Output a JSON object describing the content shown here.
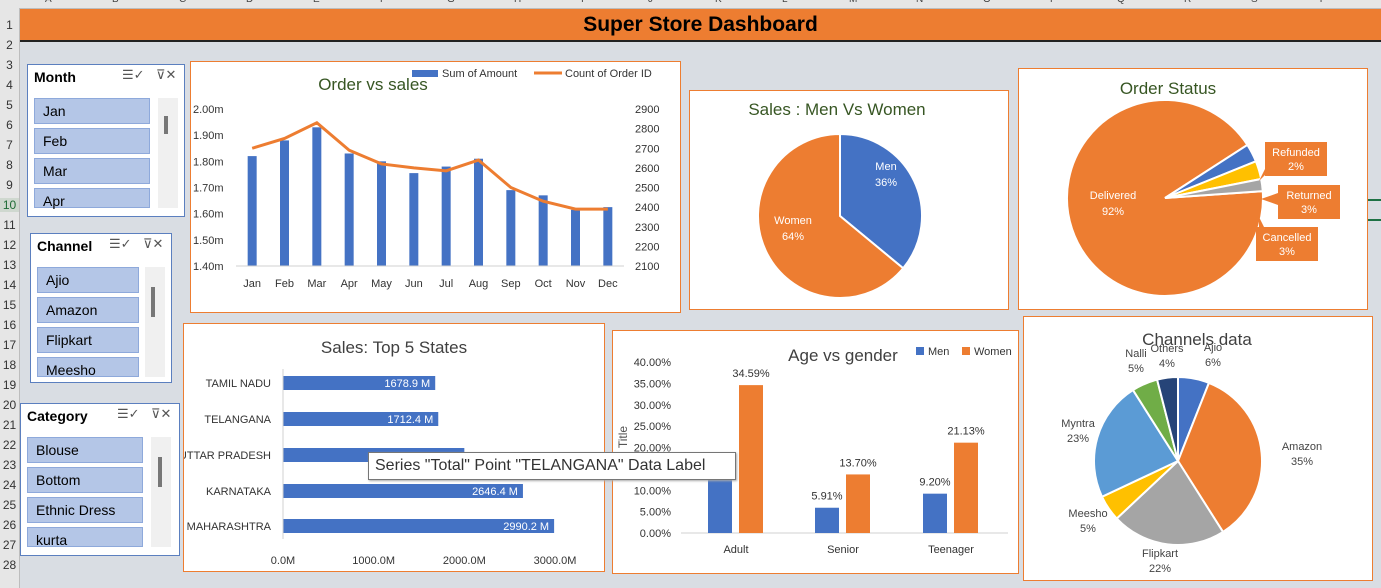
{
  "dashboard": {
    "title": "Super Store Dashboard"
  },
  "sheet": {
    "columns": [
      "A",
      "B",
      "C",
      "D",
      "E",
      "F",
      "G",
      "H",
      "I",
      "J",
      "K",
      "L",
      "M",
      "N",
      "O",
      "P",
      "Q",
      "R",
      "S",
      "T"
    ],
    "rows": [
      "1",
      "2",
      "3",
      "4",
      "5",
      "6",
      "7",
      "8",
      "9",
      "10",
      "11",
      "12",
      "13",
      "14",
      "15",
      "16",
      "17",
      "18",
      "19",
      "20",
      "21",
      "22",
      "23",
      "24",
      "25",
      "26",
      "27",
      "28"
    ],
    "selected_row": "10"
  },
  "slicers": {
    "month": {
      "title": "Month",
      "items": [
        "Jan",
        "Feb",
        "Mar",
        "Apr"
      ],
      "icons": [
        "multi-select-icon",
        "clear-filter-icon"
      ]
    },
    "channel": {
      "title": "Channel",
      "items": [
        "Ajio",
        "Amazon",
        "Flipkart",
        "Meesho"
      ],
      "icons": [
        "multi-select-icon",
        "clear-filter-icon"
      ]
    },
    "category": {
      "title": "Category",
      "items": [
        "Blouse",
        "Bottom",
        "Ethnic Dress",
        "kurta"
      ],
      "icons": [
        "multi-select-icon",
        "clear-filter-icon"
      ]
    }
  },
  "tooltip": {
    "text": "Series \"Total\" Point \"TELANGANA\" Data Label"
  },
  "colors": {
    "blue": "#4472c4",
    "orange": "#ed7d31",
    "gray": "#a5a5a5",
    "yellow": "#ffc000",
    "lightblue": "#5b9bd5",
    "green": "#70ad47",
    "navy": "#264478",
    "title_green": "#375623"
  },
  "chart_data": [
    {
      "id": "order-vs-sales",
      "type": "bar",
      "title": "Order vs  sales",
      "categories": [
        "Jan",
        "Feb",
        "Mar",
        "Apr",
        "May",
        "Jun",
        "Jul",
        "Aug",
        "Sep",
        "Oct",
        "Nov",
        "Dec"
      ],
      "series": [
        {
          "name": "Sum of Amount",
          "type": "bar",
          "axis": "left",
          "values": [
            1.82,
            1.88,
            1.93,
            1.83,
            1.8,
            1.755,
            1.78,
            1.81,
            1.69,
            1.67,
            1.615,
            1.625
          ]
        },
        {
          "name": "Count of Order ID",
          "type": "line",
          "axis": "right",
          "values": [
            2700,
            2750,
            2830,
            2690,
            2620,
            2600,
            2585,
            2640,
            2500,
            2430,
            2390,
            2390
          ]
        }
      ],
      "ylim": [
        1.4,
        2.0
      ],
      "yticks": [
        "1.40m",
        "1.50m",
        "1.60m",
        "1.70m",
        "1.80m",
        "1.90m",
        "2.00m"
      ],
      "y2lim": [
        2100,
        2900
      ],
      "y2ticks": [
        "2100",
        "2200",
        "2300",
        "2400",
        "2500",
        "2600",
        "2700",
        "2800",
        "2900"
      ],
      "legend": "top"
    },
    {
      "id": "sales-men-women",
      "type": "pie",
      "title": "Sales : Men Vs Women",
      "slices": [
        {
          "label": "Men",
          "value": 36,
          "display": "36%",
          "color": "#4472c4"
        },
        {
          "label": "Women",
          "value": 64,
          "display": "64%",
          "color": "#ed7d31"
        }
      ]
    },
    {
      "id": "order-status",
      "type": "pie",
      "title": "Order Status",
      "slices": [
        {
          "label": "Delivered",
          "value": 92,
          "display": "92%",
          "color": "#ed7d31"
        },
        {
          "label": "Refunded",
          "value": 2,
          "display": "2%",
          "color": "#a5a5a5"
        },
        {
          "label": "Returned",
          "value": 3,
          "display": "3%",
          "color": "#ffc000"
        },
        {
          "label": "Cancelled",
          "value": 3,
          "display": "3%",
          "color": "#4472c4"
        }
      ]
    },
    {
      "id": "top-5-states",
      "type": "bar",
      "orientation": "horizontal",
      "title": "Sales: Top 5 States",
      "categories": [
        "TAMIL NADU",
        "TELANGANA",
        "UTTAR PRADESH",
        "KARNATAKA",
        "MAHARASHTRA"
      ],
      "values": [
        1678.9,
        1712.4,
        2000,
        2646.4,
        2990.2
      ],
      "data_labels": [
        "1678.9 M",
        "1712.4 M",
        "",
        "2646.4 M",
        "2990.2 M"
      ],
      "xlim": [
        0,
        3000
      ],
      "xticks": [
        "0.0M",
        "1000.0M",
        "2000.0M",
        "3000.0M"
      ]
    },
    {
      "id": "age-vs-gender",
      "type": "bar",
      "title": "Age vs gender",
      "ylabel": "Title",
      "categories": [
        "Adult",
        "Senior",
        "Teenager"
      ],
      "series": [
        {
          "name": "Men",
          "values": [
            15.0,
            5.91,
            9.2
          ],
          "labels": [
            "",
            "5.91%",
            "9.20%"
          ]
        },
        {
          "name": "Women",
          "values": [
            34.59,
            13.7,
            21.13
          ],
          "labels": [
            "34.59%",
            "13.70%",
            "21.13%"
          ]
        }
      ],
      "ylim": [
        0,
        40
      ],
      "yticks": [
        "0.00%",
        "5.00%",
        "10.00%",
        "15.00%",
        "20.00%",
        "25.00%",
        "30.00%",
        "35.00%",
        "40.00%"
      ],
      "legend": "top-right"
    },
    {
      "id": "channels-data",
      "type": "pie",
      "title": "Channels data",
      "slices": [
        {
          "label": "Ajio",
          "value": 6,
          "display": "6%",
          "color": "#4472c4"
        },
        {
          "label": "Amazon",
          "value": 35,
          "display": "35%",
          "color": "#ed7d31"
        },
        {
          "label": "Flipkart",
          "value": 22,
          "display": "22%",
          "color": "#a5a5a5"
        },
        {
          "label": "Meesho",
          "value": 5,
          "display": "5%",
          "color": "#ffc000"
        },
        {
          "label": "Myntra",
          "value": 23,
          "display": "23%",
          "color": "#5b9bd5"
        },
        {
          "label": "Nalli",
          "value": 5,
          "display": "5%",
          "color": "#70ad47"
        },
        {
          "label": "Others",
          "value": 4,
          "display": "4%",
          "color": "#264478"
        }
      ]
    }
  ]
}
